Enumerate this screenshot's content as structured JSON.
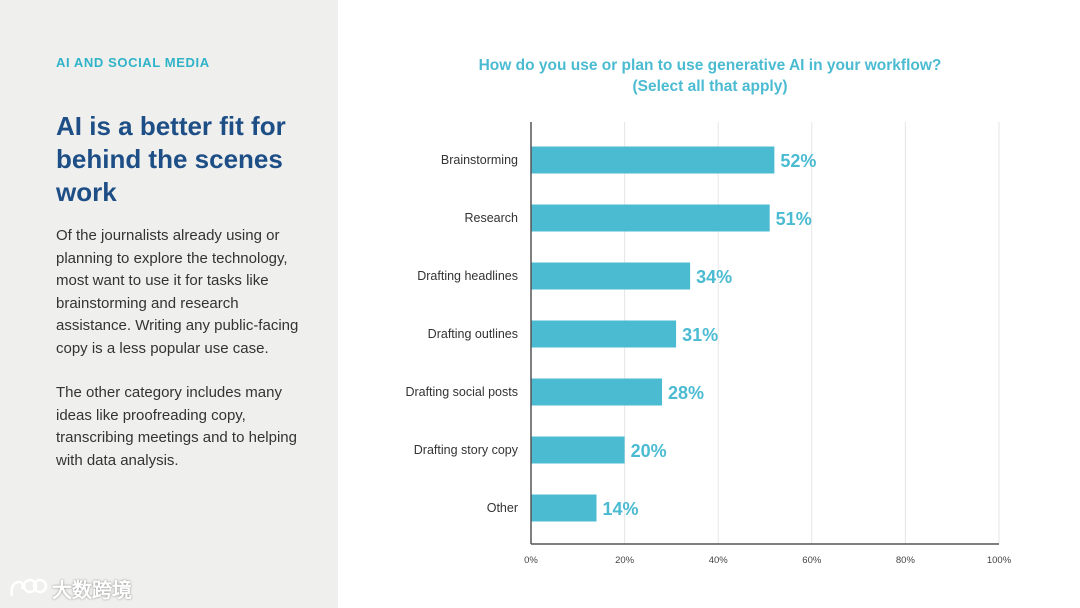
{
  "left_panel": {
    "eyebrow": "AI AND SOCIAL MEDIA",
    "headline": "AI is a better fit for behind the scenes work",
    "paragraph1": "Of the journalists already using or planning to explore the technology, most want to use it for tasks like brainstorming and research assistance. Writing any public-facing copy is a less popular use case.",
    "paragraph2": "The other category includes many ideas like proofreading copy, transcribing meetings and to helping with data analysis."
  },
  "watermark": {
    "text": "大数跨境"
  },
  "colors": {
    "accent": "#2fb3c8",
    "headline": "#1d4e86",
    "bar": "#4bbbd2",
    "panel_bg": "#efefed"
  },
  "chart_data": {
    "type": "bar",
    "orientation": "horizontal",
    "title_line1": "How do you use or plan to use generative AI in your workflow?",
    "title_line2": "(Select all that apply)",
    "categories": [
      "Brainstorming",
      "Research",
      "Drafting headlines",
      "Drafting outlines",
      "Drafting social posts",
      "Drafting story copy",
      "Other"
    ],
    "values": [
      52,
      51,
      34,
      31,
      28,
      20,
      14
    ],
    "value_labels": [
      "52%",
      "51%",
      "34%",
      "31%",
      "28%",
      "20%",
      "14%"
    ],
    "xlim": [
      0,
      100
    ],
    "ticks": [
      0,
      20,
      40,
      60,
      80,
      100
    ],
    "tick_labels": [
      "0%",
      "20%",
      "40%",
      "60%",
      "80%",
      "100%"
    ],
    "grid": true,
    "xlabel": "",
    "ylabel": ""
  }
}
